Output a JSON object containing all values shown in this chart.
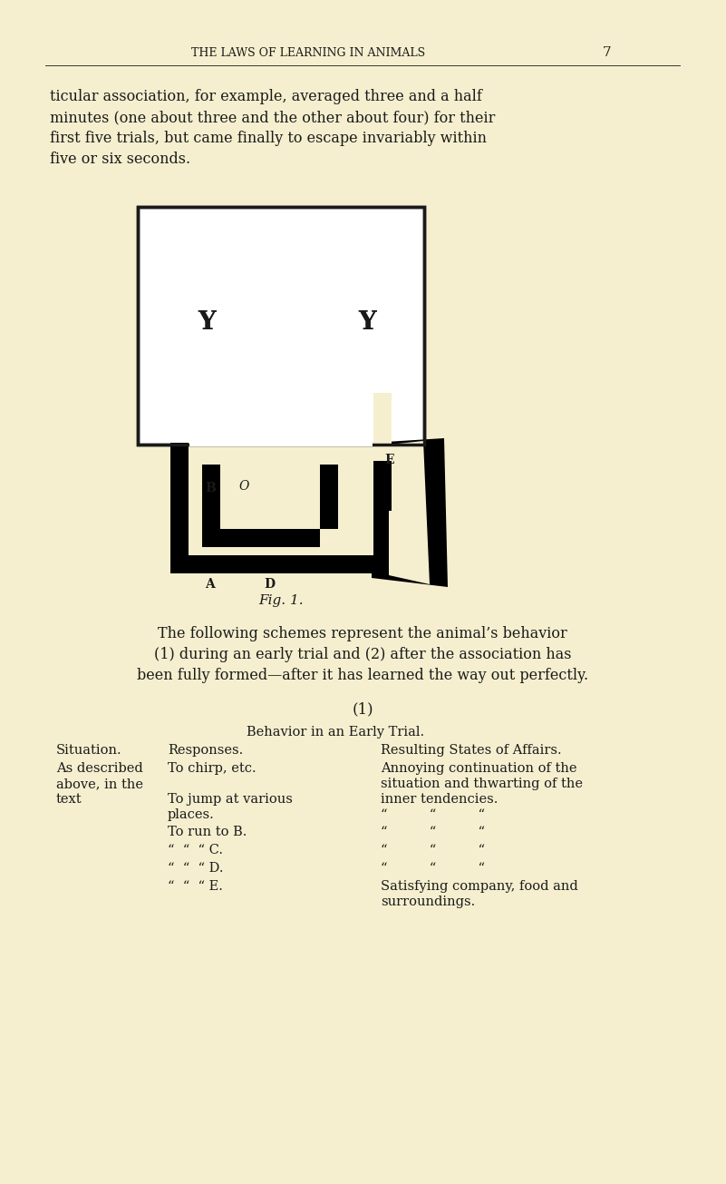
{
  "bg_color": "#f5efcf",
  "text_color": "#1a1a1a",
  "header": "THE LAWS OF LEARNING IN ANIMALS",
  "page_num": "7",
  "paragraph": "ticular association, for example, averaged three and a half\nminutes (one about three and the other about four) for their\nfirst five trials, but came finally to escape invariably within\nfive or six seconds.",
  "fig_caption": "Fig. 1.",
  "following_text1": "The following schemes represent the animal’s behavior",
  "following_text2": "(1) during an early trial and (2) after the association has",
  "following_text3": "been fully formed—after it has learned the way out perfectly.",
  "section_title": "(1)",
  "table_rows": [
    [
      "To chirp, etc.",
      "Annoying continuation of the",
      "situation and thwarting of the"
    ],
    [
      "To jump at various",
      "inner tendencies.",
      ""
    ],
    [
      "places.",
      "“          “          “",
      ""
    ],
    [
      "To run to B.",
      "“          “          “",
      ""
    ],
    [
      "“  “  “ C.",
      "“          “          “",
      ""
    ],
    [
      "“  “  “ D.",
      "“          “          “",
      ""
    ],
    [
      "“  “  “ E.",
      "Satisfying company, food and",
      "surroundings."
    ]
  ]
}
